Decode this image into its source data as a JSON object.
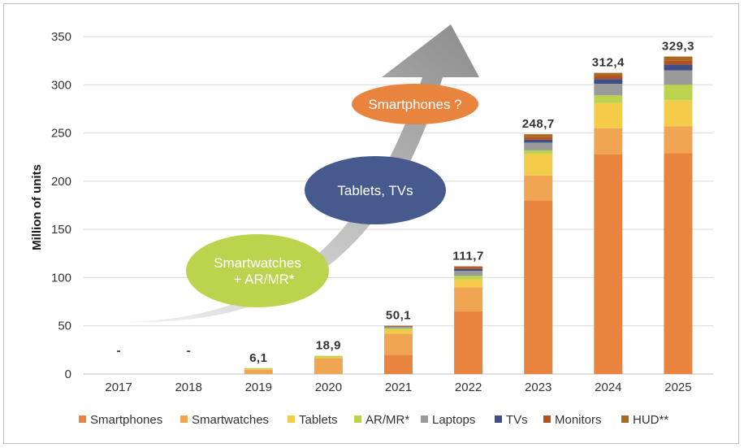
{
  "chart_data": {
    "type": "bar",
    "stacked": true,
    "ylabel": "Million of units",
    "ylim": [
      0,
      350
    ],
    "yticks": [
      0,
      50,
      100,
      150,
      200,
      250,
      300,
      350
    ],
    "grid": true,
    "legend_position": "bottom",
    "categories": [
      "2017",
      "2018",
      "2019",
      "2020",
      "2021",
      "2022",
      "2023",
      "2024",
      "2025"
    ],
    "totals_labels": [
      "-",
      "-",
      "6,1",
      "18,9",
      "50,1",
      "111,7",
      "248,7",
      "312,4",
      "329,3"
    ],
    "series": [
      {
        "name": "Smartphones",
        "color": "#e8843e",
        "values": [
          0,
          0,
          0,
          0,
          20,
          65,
          180,
          228,
          229
        ]
      },
      {
        "name": "Smartwatches",
        "color": "#f0a552",
        "values": [
          0,
          0,
          4.5,
          16.5,
          22,
          25,
          26,
          27,
          28
        ]
      },
      {
        "name": "Tablets",
        "color": "#f5cc4a",
        "values": [
          0,
          0,
          0.5,
          0.8,
          4,
          8,
          22,
          26,
          27
        ]
      },
      {
        "name": "AR/MR*",
        "color": "#bcd34e",
        "values": [
          0,
          0,
          1.1,
          1.6,
          1.5,
          4,
          4,
          8,
          16
        ]
      },
      {
        "name": "Laptops",
        "color": "#9a9a9a",
        "values": [
          0,
          0,
          0,
          0,
          1.2,
          5,
          8,
          12,
          15
        ]
      },
      {
        "name": "TVs",
        "color": "#3d4f86",
        "values": [
          0,
          0,
          0,
          0,
          0.5,
          2,
          3,
          5,
          6
        ]
      },
      {
        "name": "Monitors",
        "color": "#b5511f",
        "values": [
          0,
          0,
          0,
          0,
          0.5,
          2,
          3,
          3.5,
          4
        ]
      },
      {
        "name": "HUD**",
        "color": "#a86a1c",
        "values": [
          0,
          0,
          0,
          0,
          0.4,
          0.7,
          2.7,
          2.9,
          4.3
        ]
      }
    ],
    "annotations": [
      {
        "text": "Smartwatches\n+ AR/MR*",
        "color": "#bcd34e"
      },
      {
        "text": "Tablets, TVs",
        "color": "#475a8e"
      },
      {
        "text": "Smartphones ?",
        "color": "#e8843e"
      }
    ]
  }
}
